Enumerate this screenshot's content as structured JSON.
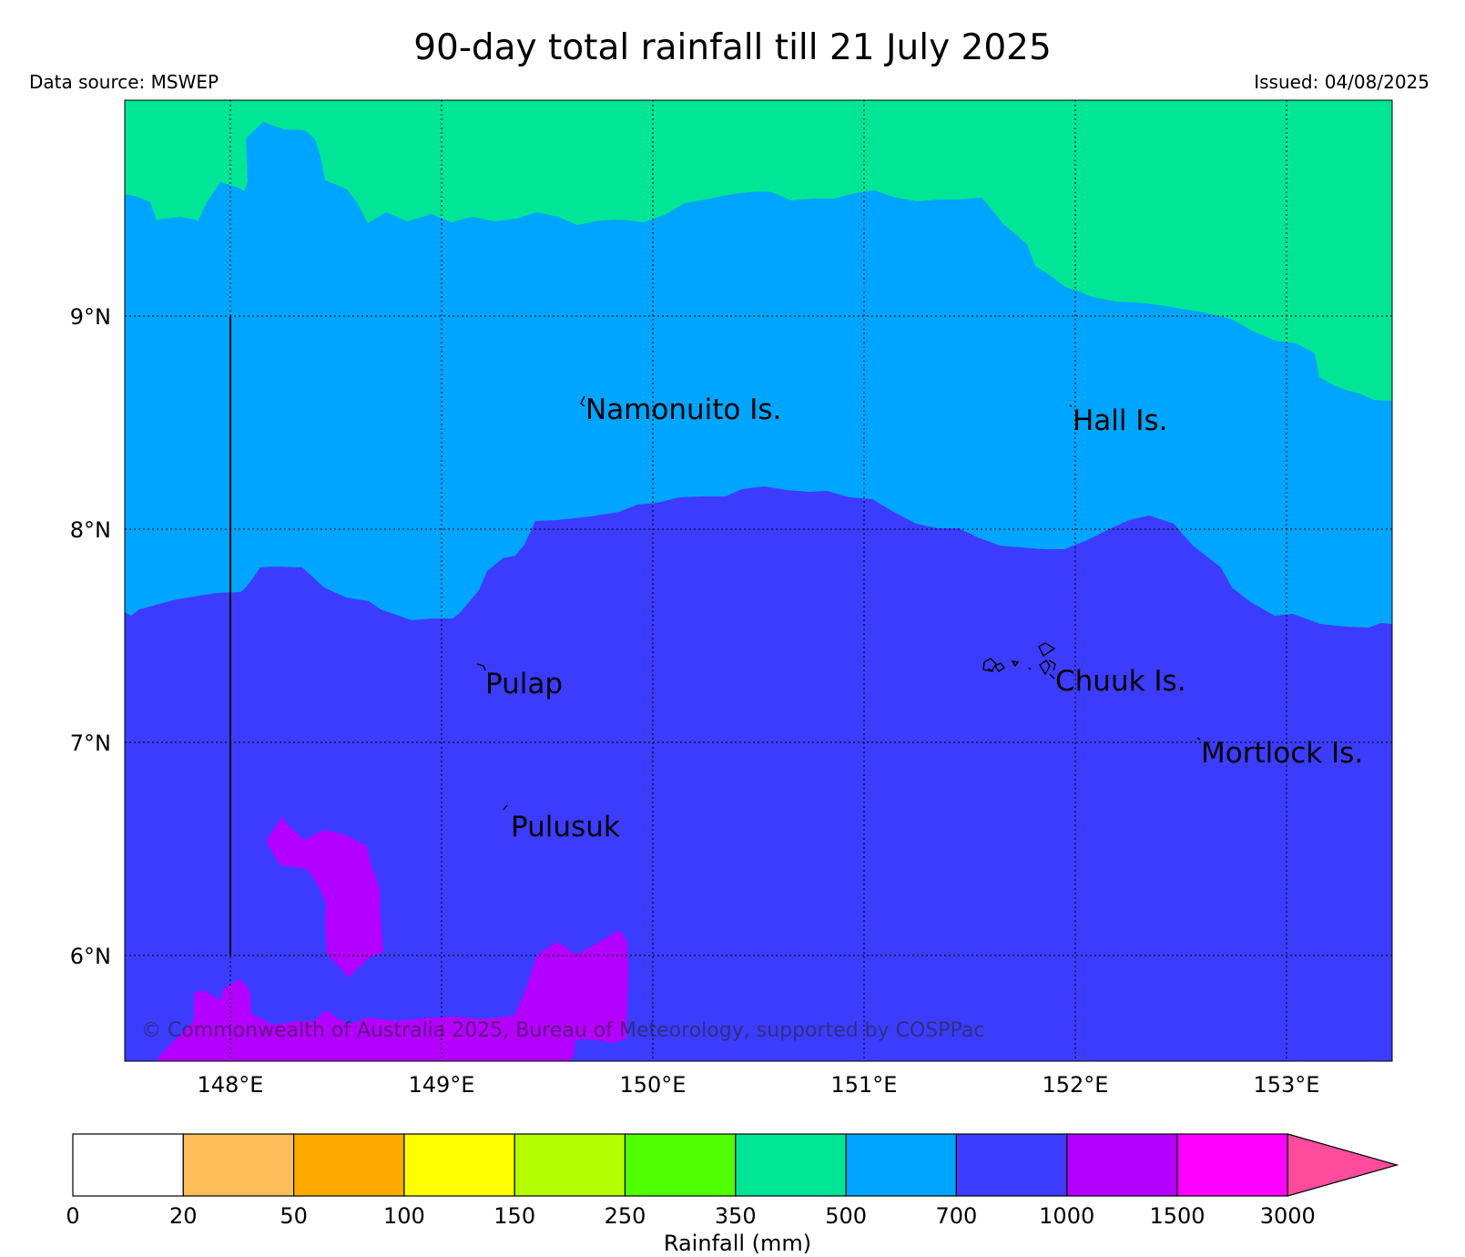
{
  "header": {
    "title": "90-day total rainfall till 21 July 2025",
    "data_source": "Data source: MSWEP",
    "issued": "Issued: 04/08/2025"
  },
  "map": {
    "copyright": "© Commonwealth of Australia 2025, Bureau of Meteorology, supported by COSPPac",
    "extent": {
      "lon": [
        147.5,
        153.5
      ],
      "lat": [
        5.5,
        10.0
      ]
    },
    "lat_ticks": [
      "9°N",
      "8°N",
      "7°N",
      "6°N"
    ],
    "lon_ticks": [
      "148°E",
      "149°E",
      "150°E",
      "151°E",
      "152°E",
      "153°E"
    ],
    "islands": [
      {
        "name": "Namonuito Is."
      },
      {
        "name": "Hall Is."
      },
      {
        "name": "Pulap"
      },
      {
        "name": "Chuuk Is."
      },
      {
        "name": "Mortlock Is."
      },
      {
        "name": "Pulusuk"
      }
    ],
    "rainfall_zones": [
      {
        "range": "350-500 mm",
        "color": "#00e696"
      },
      {
        "range": "500-700 mm",
        "color": "#00a5ff"
      },
      {
        "range": "700-1000 mm",
        "color": "#3c3cff"
      },
      {
        "range": "1000-1500 mm",
        "color": "#b400ff"
      }
    ]
  },
  "colorbar": {
    "label": "Rainfall (mm)",
    "ticks": [
      "0",
      "20",
      "50",
      "100",
      "150",
      "250",
      "350",
      "500",
      "700",
      "1000",
      "1500",
      "3000"
    ],
    "colors": [
      "#ffffff",
      "#ffbe5a",
      "#ffaa00",
      "#ffff00",
      "#b4ff00",
      "#50ff00",
      "#00e696",
      "#00a5ff",
      "#3c3cff",
      "#b400ff",
      "#ff00ff"
    ],
    "extend_color": "#ff4b9b"
  }
}
